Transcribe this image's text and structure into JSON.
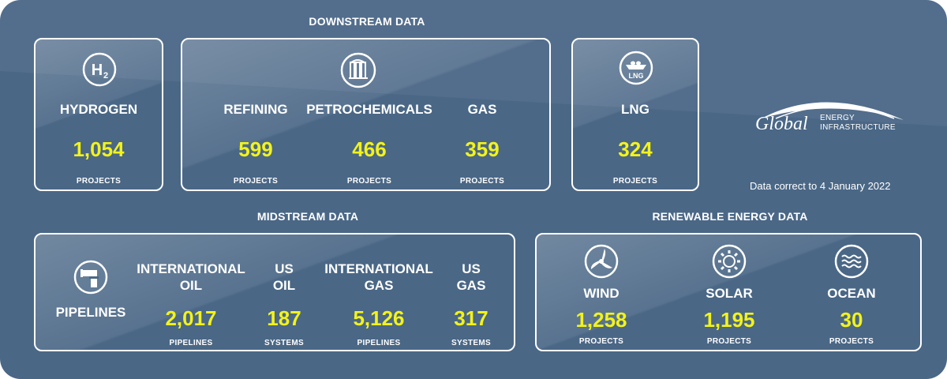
{
  "colors": {
    "background": "#4a6786",
    "value": "#f3f31a",
    "text": "#ffffff"
  },
  "sections": {
    "downstream": "DOWNSTREAM DATA",
    "midstream": "MIDSTREAM DATA",
    "renewable": "RENEWABLE ENERGY DATA"
  },
  "downstream": {
    "hydrogen": {
      "icon": "hydrogen-h2-icon",
      "icon_text": "H",
      "icon_sub": "2",
      "label": "HYDROGEN",
      "value": "1,054",
      "unit": "PROJECTS"
    },
    "refining": {
      "label": "REFINING",
      "value": "599",
      "unit": "PROJECTS"
    },
    "petrochemicals": {
      "label": "PETROCHEMICALS",
      "value": "466",
      "unit": "PROJECTS"
    },
    "gas": {
      "label": "GAS",
      "value": "359",
      "unit": "PROJECTS"
    },
    "refinery_icon": "refinery-icon",
    "lng": {
      "icon": "lng-ship-icon",
      "icon_text": "LNG",
      "label": "LNG",
      "value": "324",
      "unit": "PROJECTS"
    }
  },
  "midstream": {
    "pipelines_icon": "pipeline-icon",
    "pipelines_label": "PIPELINES",
    "columns": [
      {
        "label1": "INTERNATIONAL",
        "label2": "OIL",
        "value": "2,017",
        "unit": "PIPELINES"
      },
      {
        "label1": "US",
        "label2": "OIL",
        "value": "187",
        "unit": "SYSTEMS"
      },
      {
        "label1": "INTERNATIONAL",
        "label2": "GAS",
        "value": "5,126",
        "unit": "PIPELINES"
      },
      {
        "label1": "US",
        "label2": "GAS",
        "value": "317",
        "unit": "SYSTEMS"
      }
    ]
  },
  "renewable": {
    "wind": {
      "icon": "wind-turbine-icon",
      "label": "WIND",
      "value": "1,258",
      "unit": "PROJECTS"
    },
    "solar": {
      "icon": "solar-icon",
      "label": "SOLAR",
      "value": "1,195",
      "unit": "PROJECTS"
    },
    "ocean": {
      "icon": "ocean-waves-icon",
      "label": "OCEAN",
      "value": "30",
      "unit": "PROJECTS"
    }
  },
  "logo": {
    "word": "Global",
    "line1": "ENERGY",
    "line2": "INFRASTRUCTURE"
  },
  "note": "Data correct to 4 January 2022"
}
